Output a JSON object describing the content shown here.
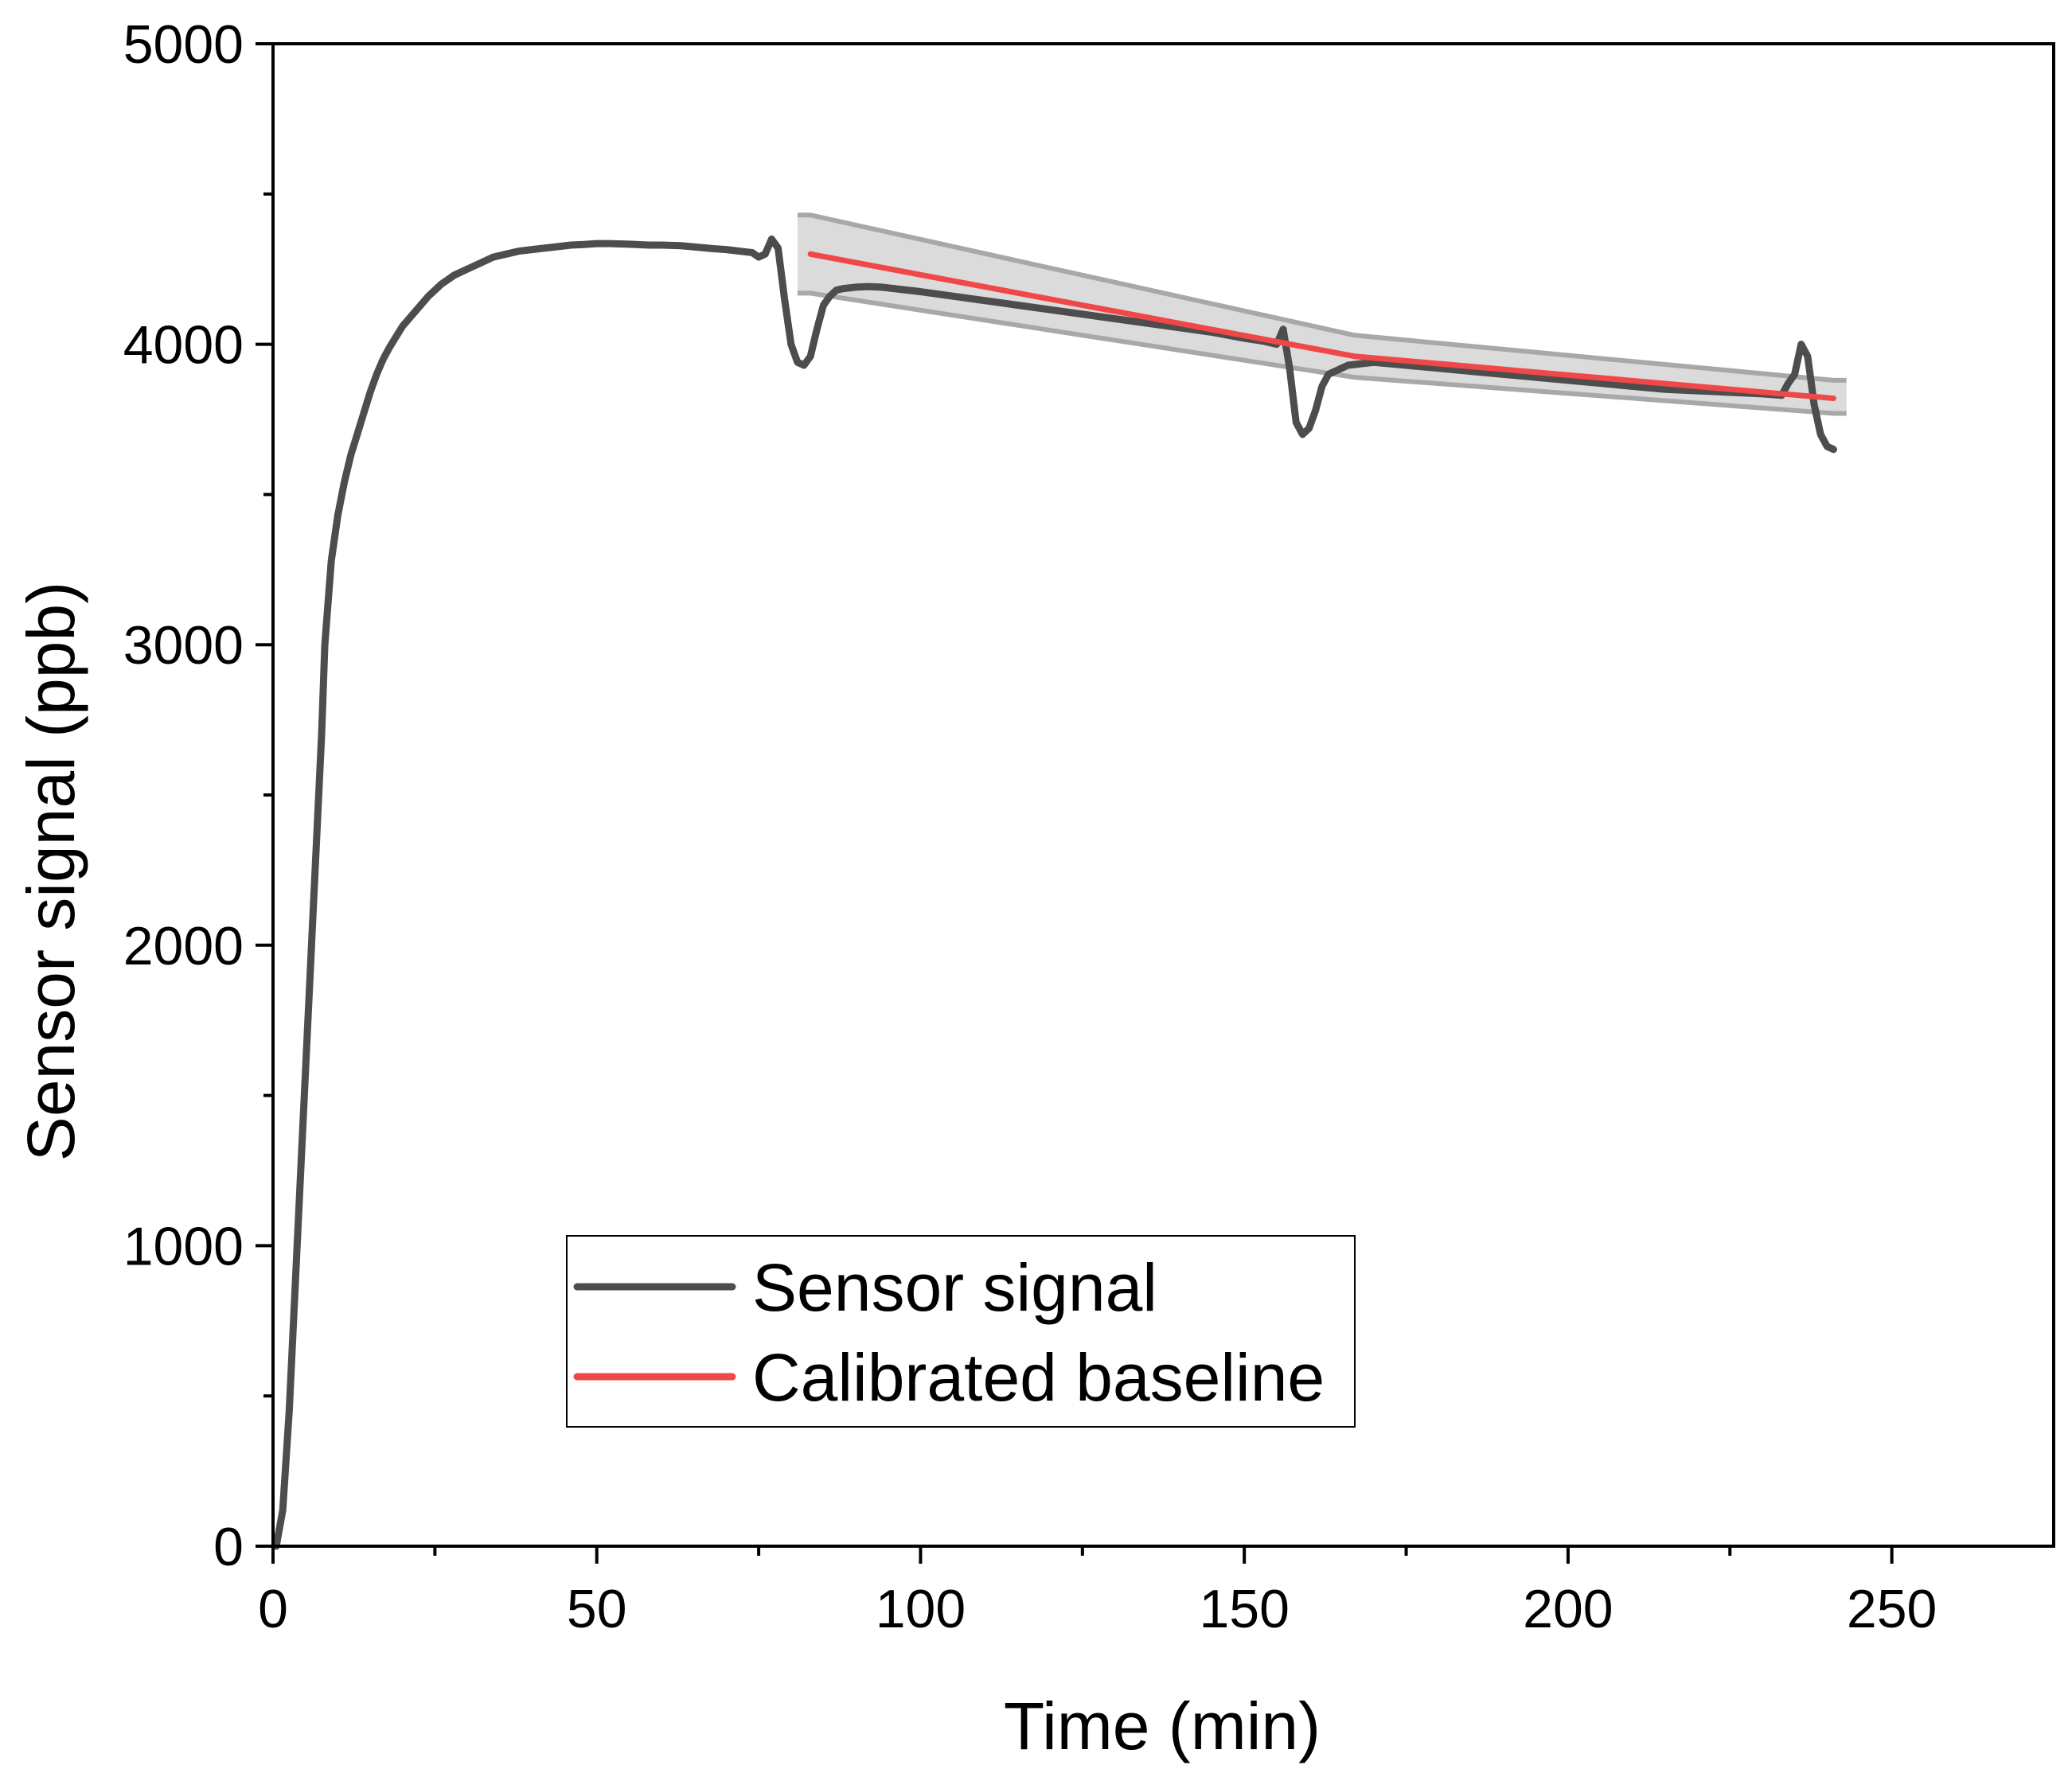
{
  "chart_data": {
    "type": "line",
    "title": "",
    "xlabel": "Time (min)",
    "ylabel": "Sensor signal (ppb)",
    "xlim": [
      0,
      275
    ],
    "ylim": [
      0,
      5000
    ],
    "x_ticks": [
      0,
      50,
      100,
      150,
      200,
      250
    ],
    "x_tick_labels": [
      "0",
      "50",
      "100",
      "150",
      "200",
      "250"
    ],
    "y_ticks": [
      0,
      1000,
      2000,
      3000,
      4000,
      5000
    ],
    "y_tick_labels": [
      "0",
      "1000",
      "2000",
      "3000",
      "4000",
      "5000"
    ],
    "grid": false,
    "legend_position": "bottom-center",
    "colors": {
      "sensor": "#4d4d4d",
      "baseline": "#f04848",
      "band": "#bdbdbd"
    },
    "series": [
      {
        "name": "Sensor signal",
        "x": [
          0.5,
          1.5,
          2.5,
          3.5,
          4.5,
          5.5,
          6.5,
          7.5,
          8,
          9,
          10,
          11,
          12,
          13,
          14,
          15,
          16,
          17,
          18,
          20,
          22,
          24,
          26,
          28,
          30,
          32,
          34,
          36,
          38,
          40,
          42,
          44,
          46,
          48,
          50,
          52,
          55,
          58,
          60,
          63,
          66,
          68,
          70,
          72,
          74,
          75,
          76,
          77,
          78,
          79,
          80,
          81,
          82,
          83,
          84,
          85,
          86,
          87,
          88,
          90,
          92,
          94,
          96,
          98,
          100,
          105,
          110,
          115,
          120,
          125,
          130,
          135,
          140,
          145,
          150,
          153,
          155,
          156,
          157,
          158,
          159,
          160,
          161,
          162,
          163,
          164,
          165,
          166,
          168,
          170,
          175,
          180,
          185,
          190,
          195,
          200,
          205,
          210,
          215,
          220,
          225,
          230,
          233,
          234,
          235,
          236,
          237,
          238,
          239,
          240,
          241
        ],
        "y": [
          0,
          120,
          450,
          900,
          1350,
          1800,
          2250,
          2700,
          3000,
          3280,
          3430,
          3540,
          3630,
          3700,
          3770,
          3840,
          3900,
          3950,
          3990,
          4060,
          4110,
          4160,
          4200,
          4230,
          4250,
          4270,
          4290,
          4300,
          4310,
          4315,
          4320,
          4325,
          4330,
          4332,
          4335,
          4335,
          4333,
          4330,
          4330,
          4328,
          4322,
          4318,
          4315,
          4310,
          4305,
          4290,
          4300,
          4350,
          4320,
          4150,
          4000,
          3940,
          3930,
          3960,
          4050,
          4130,
          4160,
          4180,
          4185,
          4190,
          4192,
          4190,
          4185,
          4180,
          4175,
          4160,
          4145,
          4130,
          4115,
          4100,
          4085,
          4070,
          4055,
          4040,
          4020,
          4010,
          4000,
          4050,
          3920,
          3740,
          3700,
          3720,
          3780,
          3860,
          3900,
          3910,
          3920,
          3930,
          3935,
          3940,
          3930,
          3920,
          3910,
          3900,
          3890,
          3880,
          3870,
          3860,
          3850,
          3845,
          3840,
          3835,
          3830,
          3870,
          3900,
          4000,
          3960,
          3800,
          3700,
          3660,
          3650
        ]
      },
      {
        "name": "Calibrated baseline",
        "x": [
          83,
          167,
          241
        ],
        "y": [
          4300,
          3960,
          3820
        ]
      }
    ],
    "uncertainty_band": {
      "x": [
        81,
        83,
        167,
        241,
        243
      ],
      "upper": [
        4430,
        4430,
        4030,
        3880,
        3880
      ],
      "lower": [
        4170,
        4170,
        3890,
        3770,
        3770
      ]
    }
  }
}
